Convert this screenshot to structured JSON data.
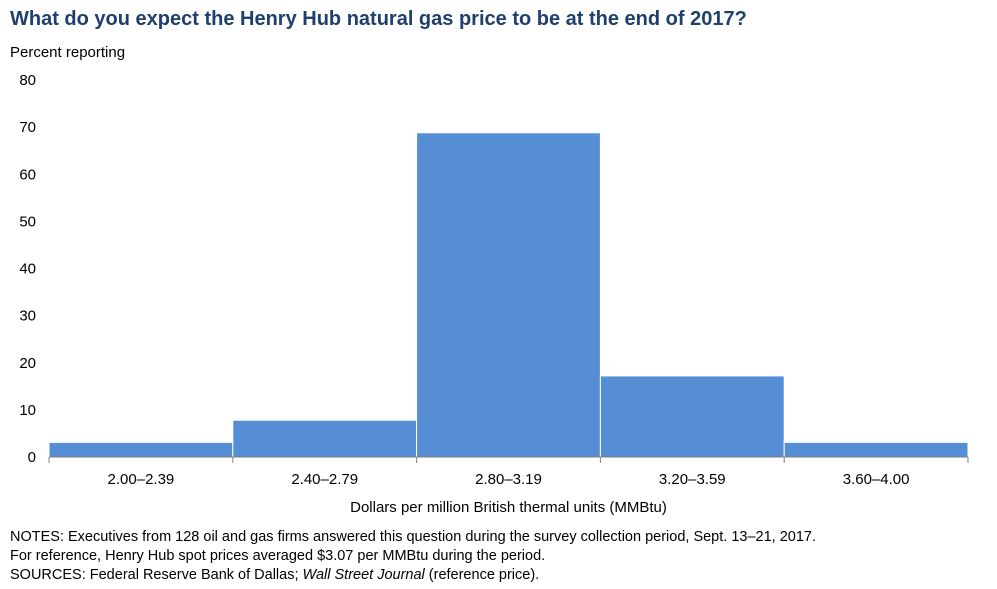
{
  "chart_data": {
    "type": "bar",
    "title": "What do you expect the Henry Hub natural gas price to be at the end of 2017?",
    "ylabel": "Percent reporting",
    "xlabel": "Dollars per million British thermal units (MMBtu)",
    "categories": [
      "2.00–2.39",
      "2.40–2.79",
      "2.80–3.19",
      "3.20–3.59",
      "3.60–4.00"
    ],
    "values": [
      3.1,
      7.8,
      68.8,
      17.2,
      3.1
    ],
    "ylim": [
      0,
      80
    ],
    "yticks": [
      0,
      10,
      20,
      30,
      40,
      50,
      60,
      70,
      80
    ],
    "bar_color": "#558ed5",
    "grid": false,
    "legend": "none"
  },
  "notes": {
    "line1": "NOTES: Executives from 128 oil and gas firms answered this question during the survey collection period, Sept. 13–21, 2017.",
    "line2": "For reference, Henry Hub spot prices averaged $3.07 per MMBtu during the period.",
    "sources_prefix": "SOURCES: Federal Reserve Bank of Dallas; ",
    "sources_italic": "Wall Street Journal",
    "sources_suffix": " (reference price)."
  }
}
